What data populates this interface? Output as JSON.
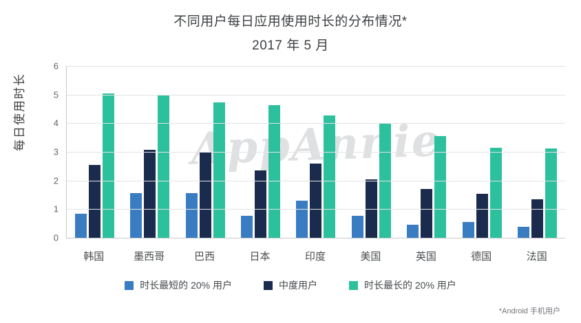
{
  "header": {
    "title": "不同用户每日应用使用时长的分布情况*",
    "subtitle": "2017 年 5 月"
  },
  "watermark": "AppAnnie",
  "footnote": "*Android 手机用户",
  "colors": {
    "series_short": "#3a7cc1",
    "series_medium": "#1b2b4d",
    "series_long": "#2cc09d",
    "gridline": "#e3e3e3",
    "axis_line": "#c8c8c8",
    "text": "#3d3f42"
  },
  "chart_data": {
    "type": "bar",
    "title": "不同用户每日应用使用时长的分布情况*",
    "subtitle": "2017 年 5 月",
    "xlabel": "",
    "ylabel": "每日使用时长",
    "ylim": [
      0,
      6
    ],
    "yticks": [
      0,
      1,
      2,
      3,
      4,
      5,
      6
    ],
    "grid": true,
    "legend_position": "bottom",
    "categories": [
      "韩国",
      "墨西哥",
      "巴西",
      "日本",
      "印度",
      "美国",
      "英国",
      "德国",
      "法国"
    ],
    "series": [
      {
        "name": "时长最短的 20% 用户",
        "color": "#3a7cc1",
        "values": [
          0.85,
          1.55,
          1.57,
          0.78,
          1.3,
          0.78,
          0.46,
          0.55,
          0.38
        ]
      },
      {
        "name": "中度用户",
        "color": "#1b2b4d",
        "values": [
          2.55,
          3.07,
          3.0,
          2.35,
          2.6,
          2.05,
          1.7,
          1.53,
          1.35
        ]
      },
      {
        "name": "时长最长的 20% 用户",
        "color": "#2cc09d",
        "values": [
          5.05,
          5.0,
          4.72,
          4.63,
          4.27,
          4.0,
          3.55,
          3.14,
          3.12
        ]
      }
    ]
  }
}
